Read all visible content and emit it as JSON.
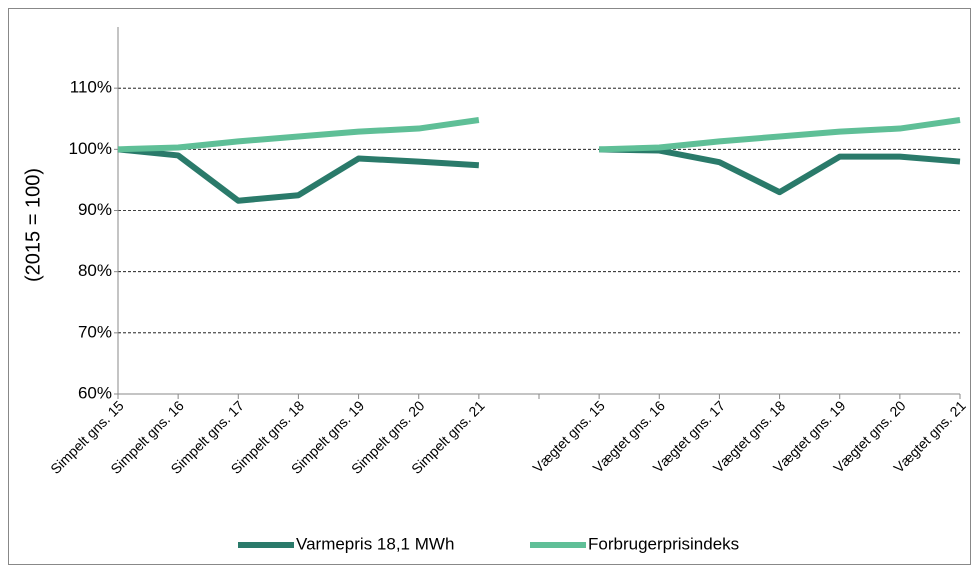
{
  "chart_data": {
    "type": "line",
    "ylabel": "(2015 = 100)",
    "categories": [
      "Simpelt gns. 15",
      "Simpelt gns. 16",
      "Simpelt gns. 17",
      "Simpelt gns. 18",
      "Simpelt gns. 19",
      "Simpelt gns. 20",
      "Simpelt gns. 21",
      null,
      "Vægtet gns. 15",
      "Vægtet gns. 16",
      "Vægtet gns. 17",
      "Vægtet gns. 18",
      "Vægtet gns. 19",
      "Vægtet gns. 20",
      "Vægtet gns. 21"
    ],
    "series": [
      {
        "name": "Varmepris 18,1 MWh",
        "color": "#2a7a6a",
        "values": [
          100,
          99,
          91.6,
          92.5,
          98.5,
          98,
          97.4,
          null,
          100,
          99.8,
          97.9,
          93,
          98.8,
          98.8,
          98
        ]
      },
      {
        "name": "Forbrugerprisindeks",
        "color": "#5fbf97",
        "values": [
          100,
          100.3,
          101.3,
          102.1,
          102.9,
          103.4,
          104.8,
          null,
          100,
          100.3,
          101.3,
          102.1,
          102.9,
          103.4,
          104.8
        ]
      }
    ],
    "ylim": [
      60,
      120
    ],
    "yticks": [
      {
        "value": 60,
        "label": "60%"
      },
      {
        "value": 70,
        "label": "70%"
      },
      {
        "value": 80,
        "label": "80%"
      },
      {
        "value": 90,
        "label": "90%"
      },
      {
        "value": 100,
        "label": "100%"
      },
      {
        "value": 110,
        "label": "110%"
      }
    ],
    "grid": true,
    "legend": "bottom"
  }
}
